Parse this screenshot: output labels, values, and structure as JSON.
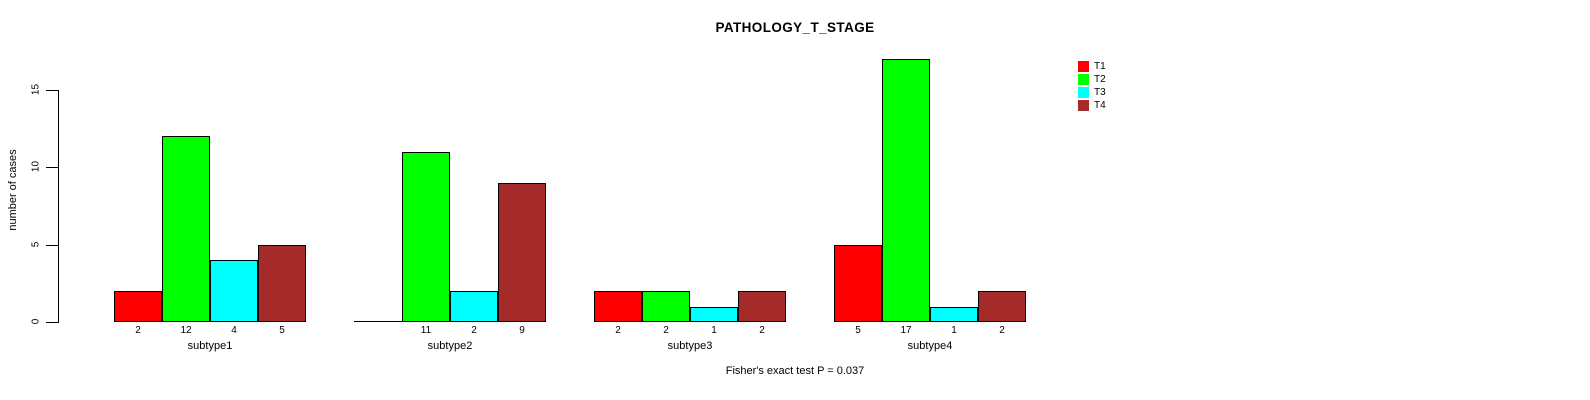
{
  "window": {
    "background": "#FFFFFF"
  },
  "chart_data": {
    "type": "bar",
    "title": "PATHOLOGY_T_STAGE",
    "ylabel": "number of cases",
    "xlabel": "",
    "categories": [
      "subtype1",
      "subtype2",
      "subtype3",
      "subtype4"
    ],
    "series": [
      {
        "name": "T1",
        "color": "#FF0000",
        "values": [
          2,
          0,
          2,
          5
        ]
      },
      {
        "name": "T2",
        "color": "#00FF00",
        "values": [
          12,
          11,
          2,
          17
        ]
      },
      {
        "name": "T3",
        "color": "#00FFFF",
        "values": [
          4,
          2,
          1,
          1
        ]
      },
      {
        "name": "T4",
        "color": "#A52A2A",
        "values": [
          5,
          9,
          2,
          2
        ]
      }
    ],
    "bar_value_labels": [
      [
        "2",
        "12",
        "4",
        "5"
      ],
      [
        "",
        "11",
        "2",
        "9"
      ],
      [
        "2",
        "2",
        "1",
        "2"
      ],
      [
        "5",
        "17",
        "1",
        "2"
      ]
    ],
    "yticks": [
      0,
      5,
      10,
      15
    ],
    "ylim": [
      0,
      15
    ],
    "grid": false,
    "legend_position": "top-right",
    "annotation": "Fisher's exact test P = 0.037",
    "bar_border_color": "#000000",
    "axis_color": "#000000",
    "text_color": "#000000"
  }
}
